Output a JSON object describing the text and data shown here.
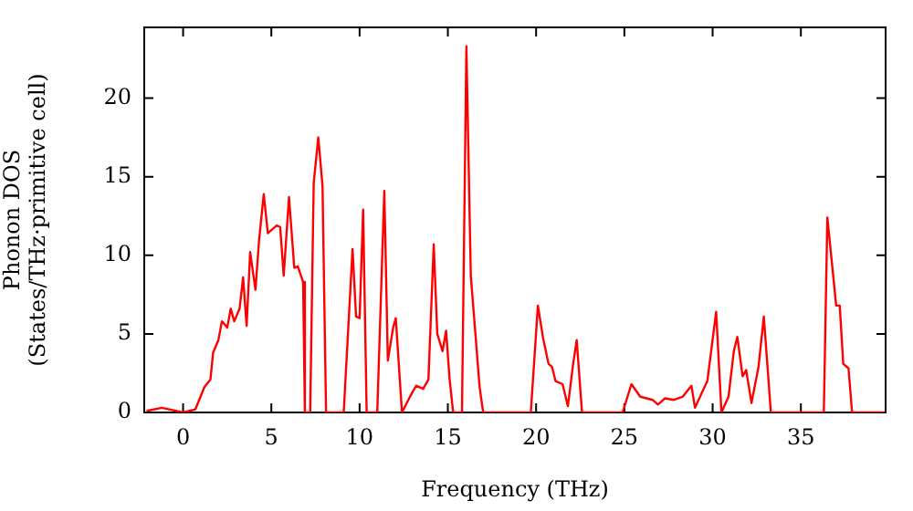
{
  "chart_data": {
    "type": "line",
    "xlabel": "Frequency (THz)",
    "ylabel": "Phonon DOS\n(States/THz·primitive cell)",
    "x": [
      -2.07,
      -1.2,
      0,
      0.7,
      1.2,
      1.55,
      1.7,
      2.0,
      2.2,
      2.5,
      2.7,
      2.9,
      3.2,
      3.4,
      3.6,
      3.8,
      4.1,
      4.3,
      4.57,
      4.8,
      5.3,
      5.5,
      5.7,
      6.0,
      6.3,
      6.5,
      6.8,
      6.9,
      7.2,
      7.4,
      7.66,
      7.9,
      8.1,
      9.1,
      9.6,
      9.8,
      10.0,
      10.2,
      10.4,
      11.0,
      11.4,
      11.6,
      11.9,
      12.05,
      12.4,
      12.9,
      13.2,
      13.6,
      13.9,
      14.2,
      14.4,
      14.7,
      14.9,
      15.1,
      15.3,
      15.8,
      16.05,
      16.3,
      16.8,
      17.0,
      19.7,
      20.1,
      20.4,
      20.7,
      20.9,
      21.1,
      21.5,
      21.8,
      22.1,
      22.3,
      22.6,
      24.9,
      25.4,
      25.9,
      26.6,
      26.9,
      27.3,
      27.8,
      28.3,
      28.8,
      29.0,
      29.7,
      30.2,
      30.5,
      30.9,
      31.2,
      31.4,
      31.7,
      31.9,
      32.2,
      32.6,
      32.9,
      33.3,
      36.3,
      36.5,
      37.0,
      37.2,
      37.4,
      37.7,
      37.9,
      39.7
    ],
    "series": [
      {
        "color": "#ff0000",
        "values": [
          0.1,
          0.3,
          0,
          0.2,
          1.6,
          2.1,
          3.8,
          4.6,
          5.8,
          5.4,
          6.6,
          5.8,
          6.6,
          8.6,
          5.5,
          10.2,
          7.8,
          10.9,
          13.9,
          11.4,
          11.9,
          11.8,
          8.7,
          13.7,
          9.2,
          9.3,
          8.3,
          0,
          0,
          14.6,
          17.5,
          14.4,
          0,
          0,
          10.4,
          6.1,
          6.0,
          12.9,
          0,
          0,
          14.1,
          3.3,
          5.4,
          6.0,
          0,
          1.1,
          1.7,
          1.5,
          2.1,
          10.7,
          5.0,
          3.9,
          5.2,
          2.1,
          0,
          0,
          23.3,
          8.7,
          1.6,
          0,
          0,
          6.8,
          4.7,
          3.1,
          2.9,
          2.0,
          1.8,
          0.4,
          3.1,
          4.6,
          0,
          0,
          1.8,
          1.0,
          0.8,
          0.5,
          0.9,
          0.8,
          1.0,
          1.7,
          0.3,
          2.0,
          6.4,
          0,
          1.0,
          3.9,
          4.8,
          2.3,
          2.7,
          0.6,
          2.9,
          6.1,
          0,
          0,
          12.4,
          6.8,
          6.8,
          3.1,
          2.8,
          0,
          0
        ]
      }
    ],
    "xlim": [
      -2.2,
      39.8
    ],
    "ylim": [
      0,
      24.5
    ],
    "xticks": [
      0,
      5,
      10,
      15,
      20,
      25,
      30,
      35
    ],
    "yticks": [
      0,
      5,
      10,
      15,
      20
    ],
    "grid": false,
    "legend": false,
    "marker": "none",
    "line_style": "solid"
  }
}
